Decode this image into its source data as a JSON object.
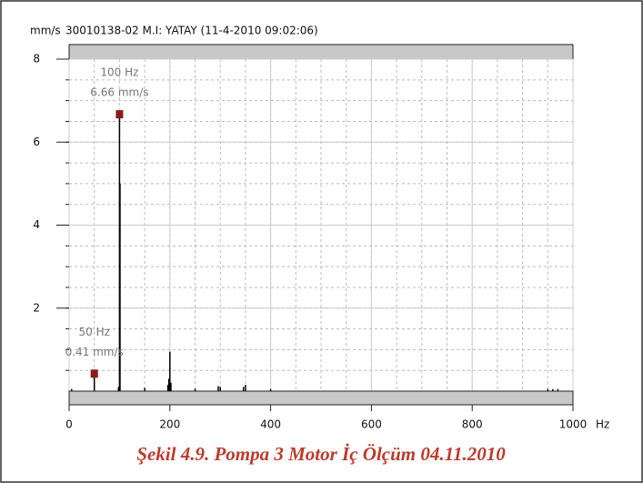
{
  "chart_data": {
    "type": "spectrum",
    "title": "30010138-02 M.I: YATAY (11-4-2010 09:02:06)",
    "y_unit": "mm/s",
    "x_unit": "Hz",
    "x": [
      5,
      50,
      98,
      100,
      101,
      150,
      196,
      198,
      200,
      202,
      250,
      296,
      300,
      346,
      350,
      400,
      950,
      960,
      970
    ],
    "values": [
      0.05,
      0.41,
      0.1,
      6.66,
      5.0,
      0.08,
      0.15,
      0.3,
      0.95,
      0.2,
      0.06,
      0.12,
      0.1,
      0.1,
      0.15,
      0.05,
      0.05,
      0.05,
      0.05
    ],
    "color": "#000000",
    "markers": [
      {
        "x": 100,
        "value": 6.66,
        "label_hz": "100 Hz",
        "label_amp": "6.66 mm/s"
      },
      {
        "x": 50,
        "value": 0.41,
        "label_hz": "50 Hz",
        "label_amp": "0.41 mm/s"
      }
    ],
    "marker_color": "#8b1a1a",
    "xlim": [
      0,
      1000
    ],
    "xticks": [
      0,
      200,
      400,
      600,
      800,
      1000
    ],
    "ylim": [
      0,
      8
    ],
    "yticks": [
      2,
      4,
      6,
      8
    ],
    "grid": true,
    "caption": "Şekil 4.9. Pompa 3 Motor İç Ölçüm 04.11.2010"
  }
}
